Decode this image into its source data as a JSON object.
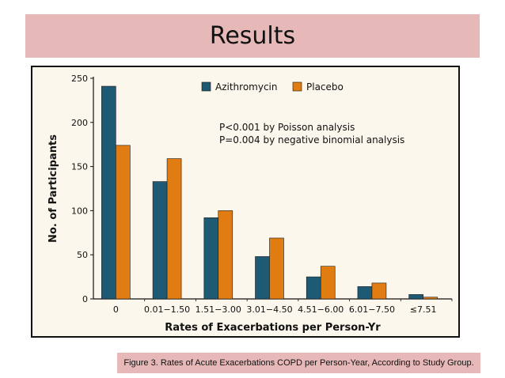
{
  "slide": {
    "title": "Results",
    "caption": "Figure 3. Rates of Acute Exacerbations COPD per Person-Year, According to Study Group."
  },
  "chart_data": {
    "type": "bar",
    "categories": [
      "0",
      "0.01−1.50",
      "1.51−3.00",
      "3.01−4.50",
      "4.51−6.00",
      "6.01−7.50",
      "≤7.51"
    ],
    "series": [
      {
        "name": "Azithromycin",
        "color": "#1e5a73",
        "values": [
          241,
          133,
          92,
          48,
          25,
          14,
          5
        ]
      },
      {
        "name": "Placebo",
        "color": "#e07c12",
        "values": [
          174,
          159,
          100,
          69,
          37,
          18,
          2
        ]
      }
    ],
    "xlabel": "Rates of Exacerbations per Person-Yr",
    "ylabel": "No. of Participants",
    "ylim": [
      0,
      250
    ],
    "yticks": [
      0,
      50,
      100,
      150,
      200,
      250
    ],
    "legend_position": "top",
    "annotations": [
      "P<0.001 by Poisson analysis",
      "P=0.004 by negative binomial analysis"
    ],
    "grid": false
  }
}
